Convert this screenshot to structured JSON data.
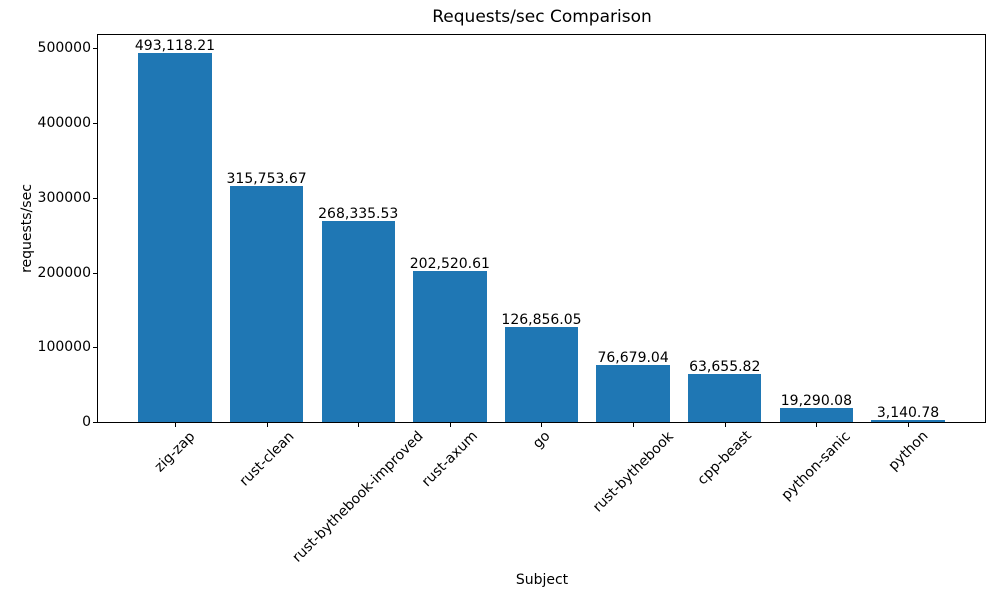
{
  "chart_data": {
    "type": "bar",
    "title": "Requests/sec Comparison",
    "xlabel": "Subject",
    "ylabel": "requests/sec",
    "categories": [
      "zig-zap",
      "rust-clean",
      "rust-bythebook-improved",
      "rust-axum",
      "go",
      "rust-bythebook",
      "cpp-beast",
      "python-sanic",
      "python"
    ],
    "values": [
      493118.21,
      315753.67,
      268335.53,
      202520.61,
      126856.05,
      76679.04,
      63655.82,
      19290.08,
      3140.78
    ],
    "value_labels": [
      "493,118.21",
      "315,753.67",
      "268,335.53",
      "202,520.61",
      "126,856.05",
      "76,679.04",
      "63,655.82",
      "19,290.08",
      "3,140.78"
    ],
    "y_ticks": [
      0,
      100000,
      200000,
      300000,
      400000,
      500000
    ],
    "y_tick_labels": [
      "0",
      "100000",
      "200000",
      "300000",
      "400000",
      "500000"
    ],
    "ylim": [
      0,
      517774
    ],
    "bar_color": "#1f77b4",
    "grid": false,
    "legend": null
  }
}
